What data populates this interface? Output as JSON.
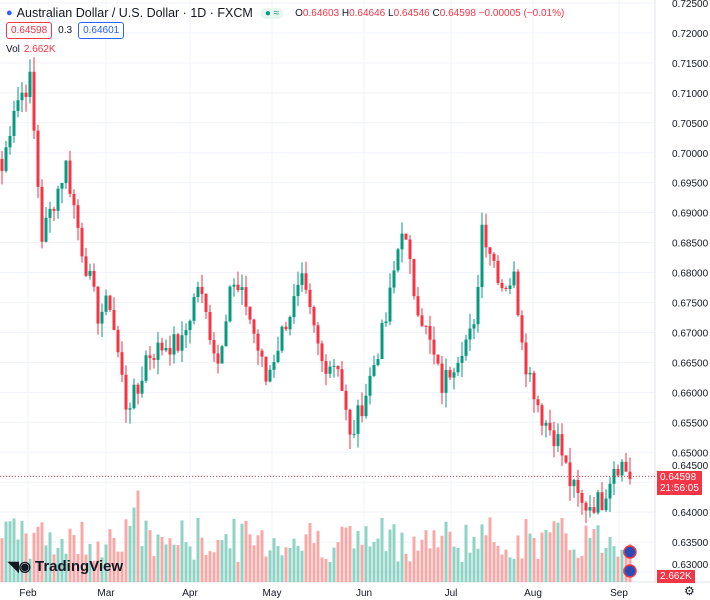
{
  "header": {
    "title": "Australian Dollar / U.S. Dollar · 1D · FXCM",
    "o_label": "O",
    "o": "0.64603",
    "h_label": "H",
    "h": "0.64646",
    "l_label": "L",
    "l": "0.64546",
    "c_label": "C",
    "c": "0.64598",
    "change": "−0.00005 (−0.01%)",
    "sell": "0.64598",
    "spread": "0.3",
    "buy": "0.64601",
    "vol_label": "Vol",
    "vol": "2.662K"
  },
  "price_tag": {
    "price": "0.64598",
    "countdown": "21:56:05"
  },
  "vol_tag": "2.662K",
  "logo": "TradingView",
  "colors": {
    "up": "#089981",
    "down": "#f23645",
    "up_vol": "#8fd3c5",
    "down_vol": "#f7a9a7"
  },
  "chart_data": {
    "type": "candlestick",
    "title": "Australian Dollar / U.S. Dollar · 1D · FXCM",
    "y_ticks": [
      "0.72500",
      "0.72000",
      "0.71500",
      "0.71000",
      "0.70500",
      "0.70000",
      "0.69500",
      "0.69000",
      "0.68500",
      "0.68000",
      "0.67500",
      "0.67000",
      "0.66500",
      "0.66000",
      "0.65500",
      "0.65000",
      "0.64500",
      "0.64000",
      "0.63500",
      "0.63000"
    ],
    "ylim": [
      0.63,
      0.725
    ],
    "x_ticks": [
      "Feb",
      "Mar",
      "Apr",
      "May",
      "Jun",
      "Jul",
      "Aug",
      "Sep"
    ],
    "approx_close_path": [
      [
        0,
        0.697
      ],
      [
        3,
        0.708
      ],
      [
        7,
        0.712
      ],
      [
        10,
        0.686
      ],
      [
        16,
        0.698
      ],
      [
        20,
        0.684
      ],
      [
        24,
        0.673
      ],
      [
        27,
        0.675
      ],
      [
        31,
        0.658
      ],
      [
        34,
        0.66
      ],
      [
        36,
        0.666
      ],
      [
        41,
        0.668
      ],
      [
        45,
        0.668
      ],
      [
        49,
        0.678
      ],
      [
        54,
        0.665
      ],
      [
        57,
        0.678
      ],
      [
        61,
        0.675
      ],
      [
        66,
        0.662
      ],
      [
        71,
        0.672
      ],
      [
        75,
        0.678
      ],
      [
        80,
        0.665
      ],
      [
        84,
        0.665
      ],
      [
        87,
        0.652
      ],
      [
        91,
        0.66
      ],
      [
        96,
        0.672
      ],
      [
        100,
        0.688
      ],
      [
        103,
        0.677
      ],
      [
        107,
        0.668
      ],
      [
        110,
        0.661
      ],
      [
        115,
        0.668
      ],
      [
        118,
        0.67
      ],
      [
        120,
        0.688
      ],
      [
        125,
        0.678
      ],
      [
        128,
        0.679
      ],
      [
        131,
        0.665
      ],
      [
        135,
        0.656
      ],
      [
        139,
        0.652
      ],
      [
        142,
        0.645
      ],
      [
        145,
        0.641
      ],
      [
        150,
        0.642
      ],
      [
        153,
        0.648
      ],
      [
        155,
        0.648
      ],
      [
        157,
        0.646
      ]
    ]
  }
}
